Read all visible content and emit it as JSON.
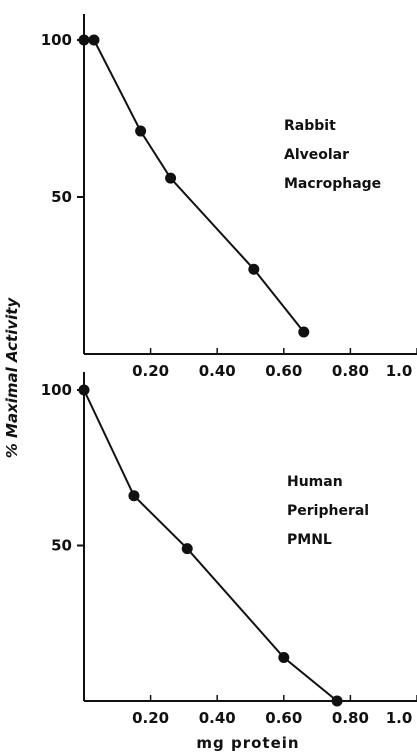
{
  "chart_data": [
    {
      "type": "line",
      "series": [
        {
          "x": [
            0.0,
            0.03,
            0.17,
            0.26,
            0.51,
            0.66
          ],
          "y": [
            100,
            100,
            71,
            56,
            27,
            7
          ]
        }
      ],
      "annotation": [
        "Rabbit",
        "Alveolar",
        "Macrophage"
      ],
      "xticks": [
        "0.20",
        "0.40",
        "0.60",
        "0.80",
        "1.0"
      ],
      "xtick_values": [
        0.2,
        0.4,
        0.6,
        0.8,
        1.0
      ],
      "yticks": [
        "100",
        "50"
      ],
      "ytick_values": [
        100,
        50
      ],
      "xlim": [
        0,
        1.0
      ],
      "ylim": [
        0,
        100
      ],
      "grid": false
    },
    {
      "type": "line",
      "series": [
        {
          "x": [
            0.0,
            0.15,
            0.31,
            0.6,
            0.76
          ],
          "y": [
            100,
            66,
            49,
            14,
            0
          ]
        }
      ],
      "annotation": [
        "Human",
        "Peripheral",
        "PMNL"
      ],
      "xticks": [
        "0.20",
        "0.40",
        "0.60",
        "0.80",
        "1.0"
      ],
      "xtick_values": [
        0.2,
        0.4,
        0.6,
        0.8,
        1.0
      ],
      "yticks": [
        "100",
        "50"
      ],
      "ytick_values": [
        100,
        50
      ],
      "xlim": [
        0,
        1.0
      ],
      "ylim": [
        0,
        100
      ],
      "grid": false
    }
  ],
  "ylabel": "% Maximal Activity",
  "xlabel": "mg protein"
}
